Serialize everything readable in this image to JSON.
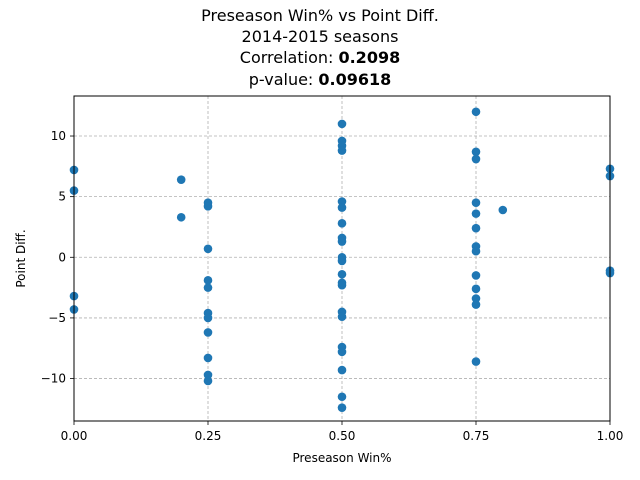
{
  "chart_data": {
    "type": "scatter",
    "title_lines": [
      "Preseason Win% vs Point Diff.",
      "2014-2015 seasons"
    ],
    "stats": [
      {
        "label": "Correlation: ",
        "value": "0.2098"
      },
      {
        "label": "p-value: ",
        "value": "0.09618"
      }
    ],
    "xlabel": "Preseason Win%",
    "ylabel": "Point Diff.",
    "xlim": [
      0.0,
      1.0
    ],
    "ylim": [
      -13.5,
      13.3
    ],
    "xticks": [
      0.0,
      0.25,
      0.5,
      0.75,
      1.0
    ],
    "xtick_labels": [
      "0.00",
      "0.25",
      "0.50",
      "0.75",
      "1.00"
    ],
    "yticks": [
      -10,
      -5,
      0,
      5,
      10
    ],
    "ytick_labels": [
      "−10",
      "−5",
      "0",
      "5",
      "10"
    ],
    "grid": true,
    "grid_style": "dashed",
    "marker_color": "#1f77b4",
    "points": [
      {
        "x": 0.0,
        "y": 7.2
      },
      {
        "x": 0.0,
        "y": 5.5
      },
      {
        "x": 0.0,
        "y": -3.2
      },
      {
        "x": 0.0,
        "y": -4.3
      },
      {
        "x": 0.2,
        "y": 6.4
      },
      {
        "x": 0.2,
        "y": 3.3
      },
      {
        "x": 0.25,
        "y": 4.5
      },
      {
        "x": 0.25,
        "y": 4.2
      },
      {
        "x": 0.25,
        "y": 0.7
      },
      {
        "x": 0.25,
        "y": -1.9
      },
      {
        "x": 0.25,
        "y": -2.5
      },
      {
        "x": 0.25,
        "y": -4.6
      },
      {
        "x": 0.25,
        "y": -5.0
      },
      {
        "x": 0.25,
        "y": -6.2
      },
      {
        "x": 0.25,
        "y": -8.3
      },
      {
        "x": 0.25,
        "y": -9.7
      },
      {
        "x": 0.25,
        "y": -10.2
      },
      {
        "x": 0.5,
        "y": 11.0
      },
      {
        "x": 0.5,
        "y": 9.6
      },
      {
        "x": 0.5,
        "y": 9.2
      },
      {
        "x": 0.5,
        "y": 8.8
      },
      {
        "x": 0.5,
        "y": 4.6
      },
      {
        "x": 0.5,
        "y": 4.1
      },
      {
        "x": 0.5,
        "y": 2.8
      },
      {
        "x": 0.5,
        "y": 1.6
      },
      {
        "x": 0.5,
        "y": 1.3
      },
      {
        "x": 0.5,
        "y": 0.0
      },
      {
        "x": 0.5,
        "y": -0.3
      },
      {
        "x": 0.5,
        "y": -1.4
      },
      {
        "x": 0.5,
        "y": -2.1
      },
      {
        "x": 0.5,
        "y": -2.3
      },
      {
        "x": 0.5,
        "y": -4.5
      },
      {
        "x": 0.5,
        "y": -4.9
      },
      {
        "x": 0.5,
        "y": -7.4
      },
      {
        "x": 0.5,
        "y": -7.8
      },
      {
        "x": 0.5,
        "y": -9.3
      },
      {
        "x": 0.5,
        "y": -11.5
      },
      {
        "x": 0.5,
        "y": -12.4
      },
      {
        "x": 0.75,
        "y": 12.0
      },
      {
        "x": 0.75,
        "y": 8.7
      },
      {
        "x": 0.75,
        "y": 8.1
      },
      {
        "x": 0.75,
        "y": 4.5
      },
      {
        "x": 0.75,
        "y": 3.6
      },
      {
        "x": 0.75,
        "y": 2.4
      },
      {
        "x": 0.75,
        "y": 0.9
      },
      {
        "x": 0.75,
        "y": 0.5
      },
      {
        "x": 0.75,
        "y": -1.5
      },
      {
        "x": 0.75,
        "y": -2.6
      },
      {
        "x": 0.75,
        "y": -3.4
      },
      {
        "x": 0.75,
        "y": -3.9
      },
      {
        "x": 0.75,
        "y": -8.6
      },
      {
        "x": 0.8,
        "y": 3.9
      },
      {
        "x": 1.0,
        "y": 7.3
      },
      {
        "x": 1.0,
        "y": 6.7
      },
      {
        "x": 1.0,
        "y": -1.1
      },
      {
        "x": 1.0,
        "y": -1.3
      }
    ]
  }
}
